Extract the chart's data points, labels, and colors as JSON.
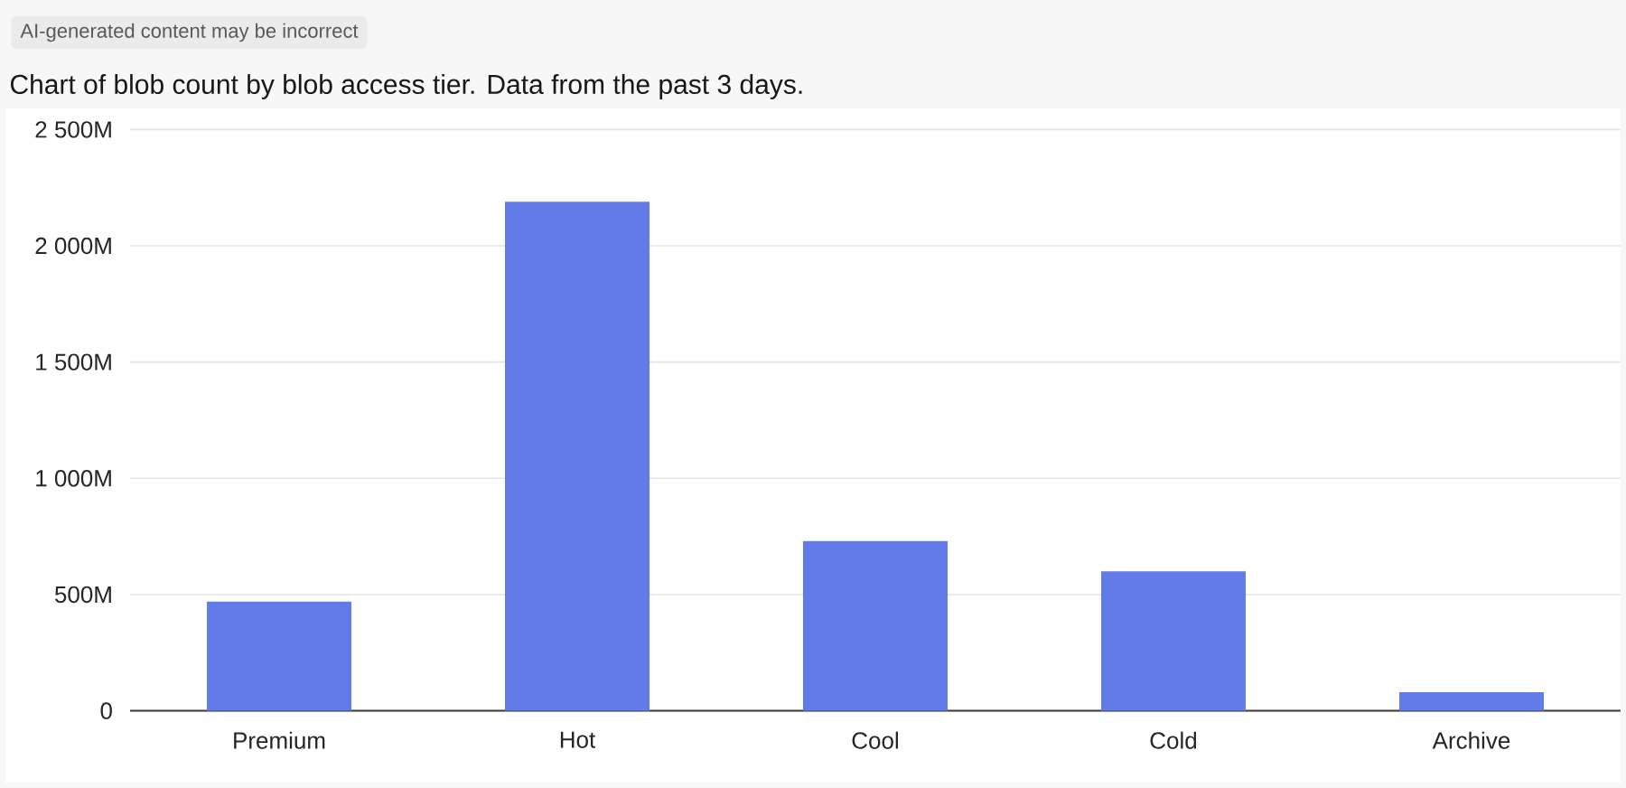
{
  "chart_data": {
    "type": "bar",
    "title": "Chart of blob count by blob access tier. Data from the past 3 days.",
    "annotations": [
      "AI-generated content may be incorrect"
    ],
    "categories": [
      "Premium",
      "Hot",
      "Cool",
      "Cold",
      "Archive"
    ],
    "values": [
      470,
      2190,
      730,
      600,
      80
    ],
    "color": "#627be9",
    "ylim": [
      0,
      2500
    ],
    "yticks": [
      0,
      {
        "value": 500,
        "label": "500M"
      },
      {
        "value": 1000,
        "label": "1 000M"
      },
      {
        "value": 1500,
        "label": "1 500M"
      },
      {
        "value": 2000,
        "label": "2 000M"
      },
      {
        "value": 2500,
        "label": "2 500M"
      }
    ],
    "grid": "y"
  }
}
